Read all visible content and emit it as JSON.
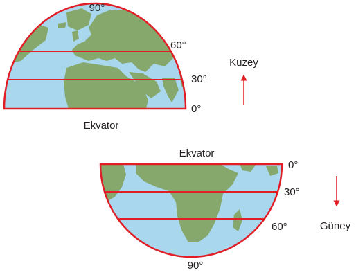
{
  "northern_hemisphere": {
    "pole_label": "90°",
    "latitude_labels": [
      "60°",
      "30°",
      "0°"
    ],
    "equator_label": "Ekvator",
    "direction_label": "Kuzey"
  },
  "southern_hemisphere": {
    "pole_label": "90°",
    "latitude_labels": [
      "0°",
      "30°",
      "60°"
    ],
    "equator_label": "Ekvator",
    "direction_label": "Güney"
  },
  "colors": {
    "ocean": "#a9d7ee",
    "land": "#86a86c",
    "lines": "#e11d26",
    "arrow": "#e11d26",
    "text": "#231f20"
  }
}
